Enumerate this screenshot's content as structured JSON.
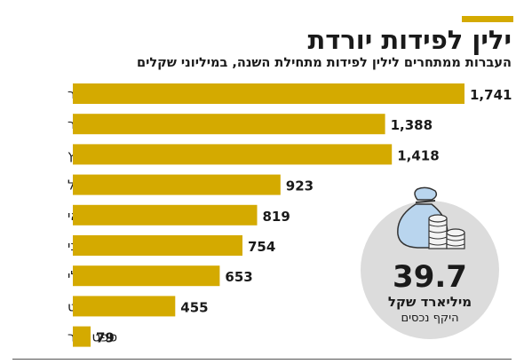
{
  "chart_data": {
    "type": "bar",
    "orientation": "horizontal",
    "title": "ילין לפידות יורדת",
    "subtitle": "העברות ממתחרים לילין לפידות מתחילת השנה, במיליוני שקלים",
    "categories": [
      "ינואר",
      "פברואר",
      "מרץ",
      "אפריל",
      "מאי",
      "יוני",
      "יולי",
      "אוגוסט",
      "ספטמבר"
    ],
    "values": [
      1741,
      1388,
      1418,
      923,
      819,
      754,
      653,
      455,
      79
    ],
    "value_labels": [
      "1,741",
      "1,388",
      "1,418",
      "923",
      "819",
      "754",
      "653",
      "455",
      "79"
    ],
    "xlim": [
      0,
      1741
    ],
    "bar_color": "#d4aa00",
    "grid": false,
    "legend": "none"
  },
  "callout": {
    "value": "39.7",
    "unit": "מיליארד שקל",
    "caption": "היקף נכסים",
    "icon": "money-bag-coins-icon",
    "circle_color": "#dcdcdc"
  }
}
